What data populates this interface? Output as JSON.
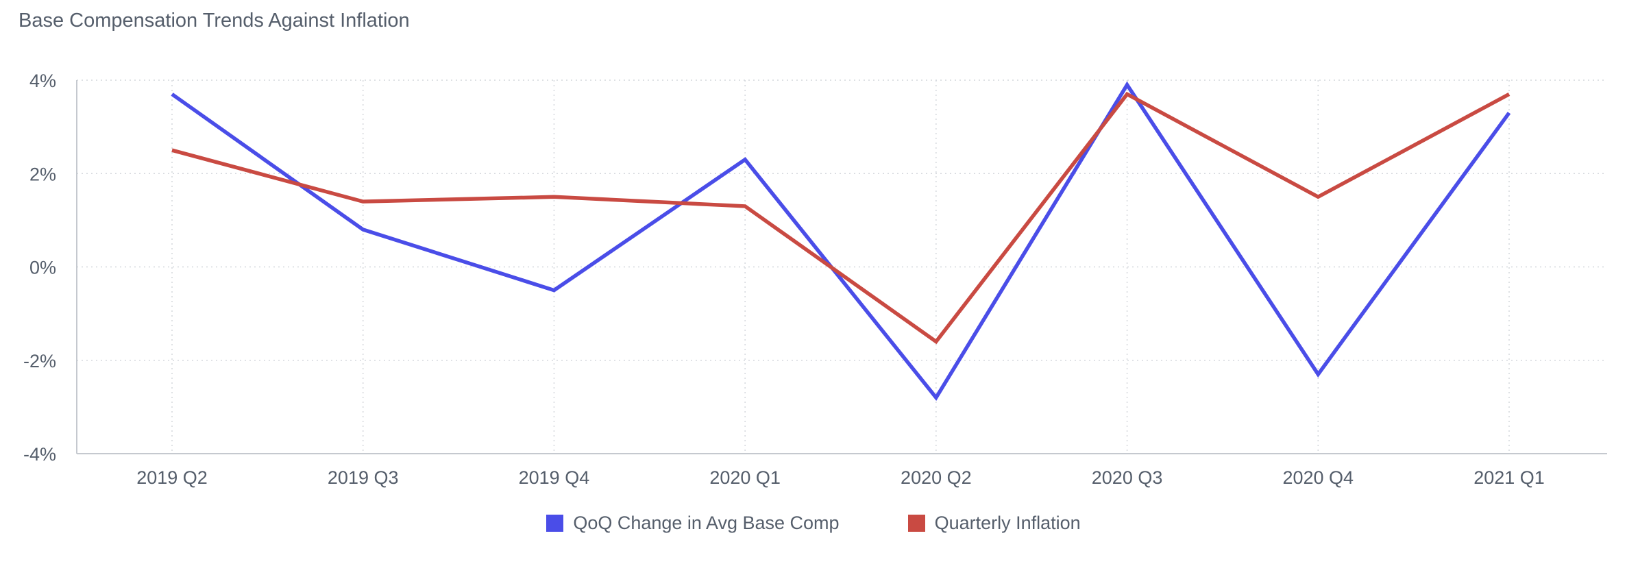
{
  "chart_data": {
    "type": "line",
    "title": "Base Compensation Trends Against Inflation",
    "xlabel": "",
    "ylabel": "",
    "categories": [
      "2019 Q2",
      "2019 Q3",
      "2019 Q4",
      "2020 Q1",
      "2020 Q2",
      "2020 Q3",
      "2020 Q4",
      "2021 Q1"
    ],
    "ylim": [
      -4,
      4
    ],
    "yticks": [
      4,
      2,
      0,
      -2,
      -4
    ],
    "ytick_labels": [
      "4%",
      "2%",
      "0%",
      "-2%",
      "-4%"
    ],
    "grid": true,
    "legend_position": "bottom-center",
    "series": [
      {
        "name": "QoQ Change in Avg Base Comp",
        "color": "#4a4de8",
        "values": [
          3.7,
          0.8,
          -0.5,
          2.3,
          -2.8,
          3.9,
          -2.3,
          3.3
        ]
      },
      {
        "name": "Quarterly Inflation",
        "color": "#c94a42",
        "values": [
          2.5,
          1.4,
          1.5,
          1.3,
          -1.6,
          3.7,
          1.5,
          3.7
        ]
      }
    ]
  }
}
